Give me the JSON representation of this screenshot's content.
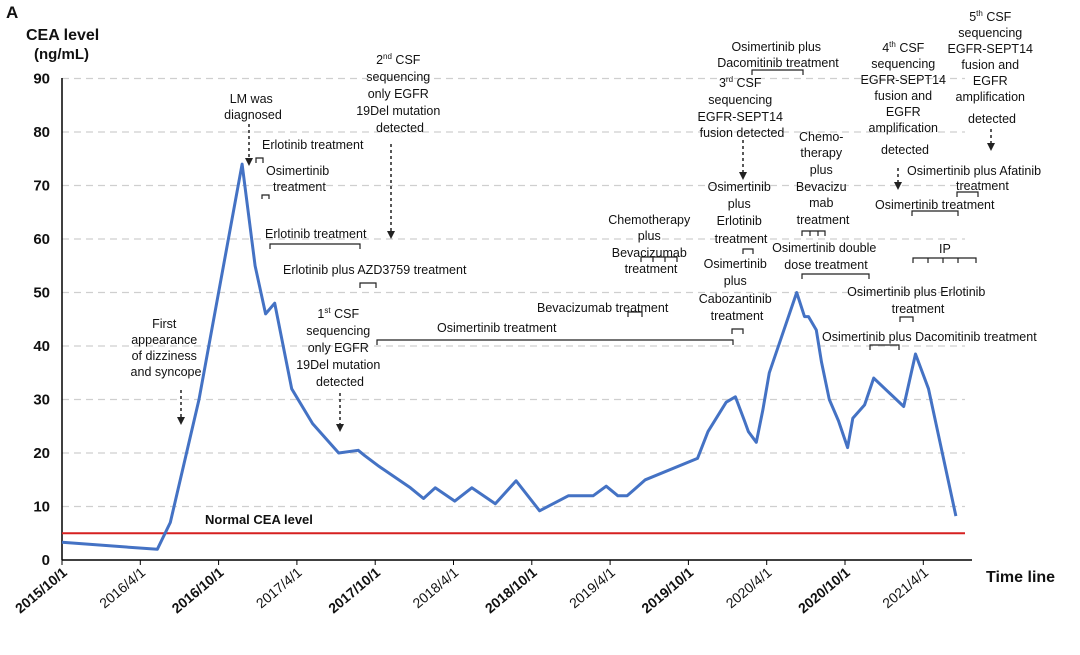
{
  "chart_data": {
    "type": "line",
    "panel_label": "A",
    "ylabel_line1": "CEA level",
    "ylabel_line2": "(ng/mL)",
    "xlabel": "Time line",
    "ylim": [
      0,
      90
    ],
    "yticks": [
      "0",
      "10",
      "20",
      "30",
      "40",
      "50",
      "60",
      "70",
      "80",
      "90"
    ],
    "grid": "horizontal dashed",
    "xticks": [
      {
        "label": "2015/10/1",
        "t": 0,
        "bold": true
      },
      {
        "label": "2016/4/1",
        "t": 6,
        "bold": false
      },
      {
        "label": "2016/10/1",
        "t": 12,
        "bold": true
      },
      {
        "label": "2017/4/1",
        "t": 18,
        "bold": false
      },
      {
        "label": "2017/10/1",
        "t": 24,
        "bold": true
      },
      {
        "label": "2018/4/1",
        "t": 30,
        "bold": false
      },
      {
        "label": "2018/10/1",
        "t": 36,
        "bold": true
      },
      {
        "label": "2019/4/1",
        "t": 42,
        "bold": false
      },
      {
        "label": "2019/10/1",
        "t": 48,
        "bold": true
      },
      {
        "label": "2020/4/1",
        "t": 54,
        "bold": false
      },
      {
        "label": "2020/10/1",
        "t": 60,
        "bold": true
      },
      {
        "label": "2021/4/1",
        "t": 66,
        "bold": false
      }
    ],
    "reference_line": {
      "label": "Normal CEA level",
      "value": 5,
      "color": "#d62020"
    },
    "series": [
      {
        "name": "CEA level",
        "color": "#4472c4",
        "t": [
          0,
          7.3,
          8.3,
          10.5,
          13.8,
          14.8,
          15.6,
          16.3,
          17.6,
          19.2,
          21.2,
          22.7,
          23.2,
          24.3,
          26.7,
          27.7,
          28.6,
          30.1,
          31.4,
          33.2,
          34.8,
          36.6,
          38.8,
          40.7,
          41.7,
          42.6,
          43.3,
          44.7,
          48.7,
          49.5,
          50.9,
          51.6,
          52.3,
          52.6,
          53.2,
          53.7,
          54.2,
          56.3,
          56.9,
          57.2,
          57.8,
          58.2,
          58.8,
          59.5,
          60.2,
          60.6,
          61.5,
          62.2,
          64.5,
          65.4,
          66.4,
          68.5
        ],
        "values": [
          3.3,
          2,
          7,
          30,
          74,
          55,
          46,
          48,
          32,
          25.5,
          20,
          20.5,
          19.5,
          17.5,
          13.5,
          11.5,
          13.5,
          11,
          13.5,
          10.5,
          14.8,
          9.2,
          12,
          12,
          13.8,
          12,
          12,
          15,
          19,
          24,
          29.5,
          30.5,
          26,
          24,
          22,
          28,
          35,
          50,
          45.5,
          45.5,
          43,
          37,
          30,
          26,
          21,
          26.5,
          29,
          34,
          28.7,
          38.5,
          32,
          8.2
        ]
      }
    ],
    "annotations": {
      "lm_diagnosed": [
        "LM was",
        "diagnosed"
      ],
      "first_dizziness": [
        "First",
        "appearance",
        "of dizziness",
        "and syncope"
      ],
      "csf1_lines": [
        "CSF",
        "sequencing",
        "only EGFR",
        "19Del mutation",
        "detected"
      ],
      "csf2_lines": [
        "CSF",
        "sequencing",
        "only EGFR",
        "19Del mutation",
        "detected"
      ],
      "csf3_lines": [
        "CSF",
        "sequencing",
        "EGFR-SEPT14",
        "fusion detected"
      ],
      "csf4_lines": [
        "CSF",
        "sequencing",
        "EGFR-SEPT14",
        "fusion and",
        "EGFR",
        "amplification",
        "detected"
      ],
      "csf5_lines": [
        "CSF",
        "sequencing",
        "EGFR-SEPT14",
        "fusion and",
        "EGFR",
        "amplification",
        "detected"
      ],
      "ord1": "1",
      "ord2": "2",
      "ord3": "3",
      "ord4": "4",
      "ord5": "5",
      "sfx_st": "st",
      "sfx_nd": "nd",
      "sfx_rd": "rd",
      "sfx_th": "th",
      "erlotinib_1": "Erlotinib treatment",
      "osimertinib_1": [
        "Osimertinib",
        "treatment"
      ],
      "erlotinib_2": "Erlotinib treatment",
      "erlotinib_azd": "Erlotinib plus AZD3759 treatment",
      "osimertinib_long": "Osimertinib treatment",
      "bevacizumab": "Bevacizumab treatment",
      "chemo_bev_1": [
        "Chemotherapy",
        "plus",
        "Bevacizumab",
        "treatment"
      ],
      "osi_erlo_1": [
        "Osimertinib",
        "plus",
        "Erlotinib",
        "treatment"
      ],
      "osi_cabo": [
        "Osimertinib",
        "plus",
        "Cabozantinib",
        "treatment"
      ],
      "osi_daco_top": [
        "Osimertinib plus",
        "Dacomitinib treatment"
      ],
      "chemo_bev_2": [
        "Chemo-",
        "therapy",
        "plus",
        "Bevacizu",
        "mab",
        "treatment"
      ],
      "osi_double": [
        "Osimertinib double",
        "dose treatment"
      ],
      "osi_erlo_2": [
        "Osimertinib plus Erlotinib",
        "treatment"
      ],
      "osi_daco_bottom": "Osimertinib plus Dacomitinib treatment",
      "osi_afatinib": [
        "Osimertinib plus Afatinib",
        "treatment"
      ],
      "osi_treatment_2": "Osimertinib treatment",
      "ip": "IP"
    }
  }
}
